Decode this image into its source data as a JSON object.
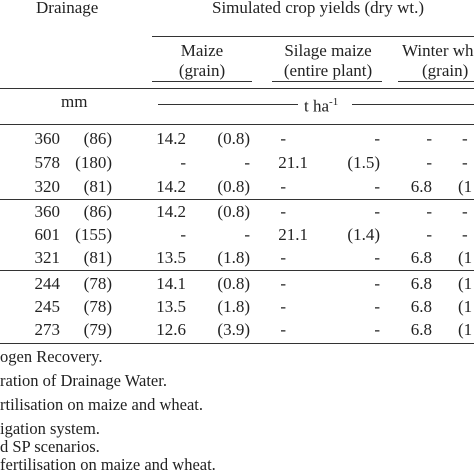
{
  "header": {
    "drainage": "Drainage",
    "yields": "Simulated crop yields (dry wt.)",
    "maize": "Maize",
    "maize_sub": "(grain)",
    "silage": "Silage maize",
    "silage_sub": "(entire plant)",
    "winter": "Winter wh",
    "winter_sub": "(grain)"
  },
  "units": {
    "mm": "mm",
    "tha": "t ha",
    "tha_exp": "-1"
  },
  "rows": [
    [
      "360",
      "(86)",
      "14.2",
      "(0.8)",
      "-",
      "-",
      "-",
      "-"
    ],
    [
      "578",
      "(180)",
      "-",
      "-",
      "21.1",
      "(1.5)",
      "-",
      "-"
    ],
    [
      "320",
      "(81)",
      "14.2",
      "(0.8)",
      "-",
      "-",
      "6.8",
      "(1"
    ],
    [
      "360",
      "(86)",
      "14.2",
      "(0.8)",
      "-",
      "-",
      "-",
      "-"
    ],
    [
      "601",
      "(155)",
      "-",
      "-",
      "21.1",
      "(1.4)",
      "-",
      "-"
    ],
    [
      "321",
      "(81)",
      "13.5",
      "(1.8)",
      "-",
      "-",
      "6.8",
      "(1"
    ],
    [
      "244",
      "(78)",
      "14.1",
      "(0.8)",
      "-",
      "-",
      "6.8",
      "(1"
    ],
    [
      "245",
      "(78)",
      "13.5",
      "(1.8)",
      "-",
      "-",
      "6.8",
      "(1"
    ],
    [
      "273",
      "(79)",
      "12.6",
      "(3.9)",
      "-",
      "-",
      "6.8",
      "(1"
    ]
  ],
  "footnotes": [
    "ogen Recovery.",
    "ration of Drainage Water.",
    "rtilisation on maize and wheat.",
    "igation system.",
    "d SP scenarios.",
    " fertilisation on maize and wheat."
  ]
}
